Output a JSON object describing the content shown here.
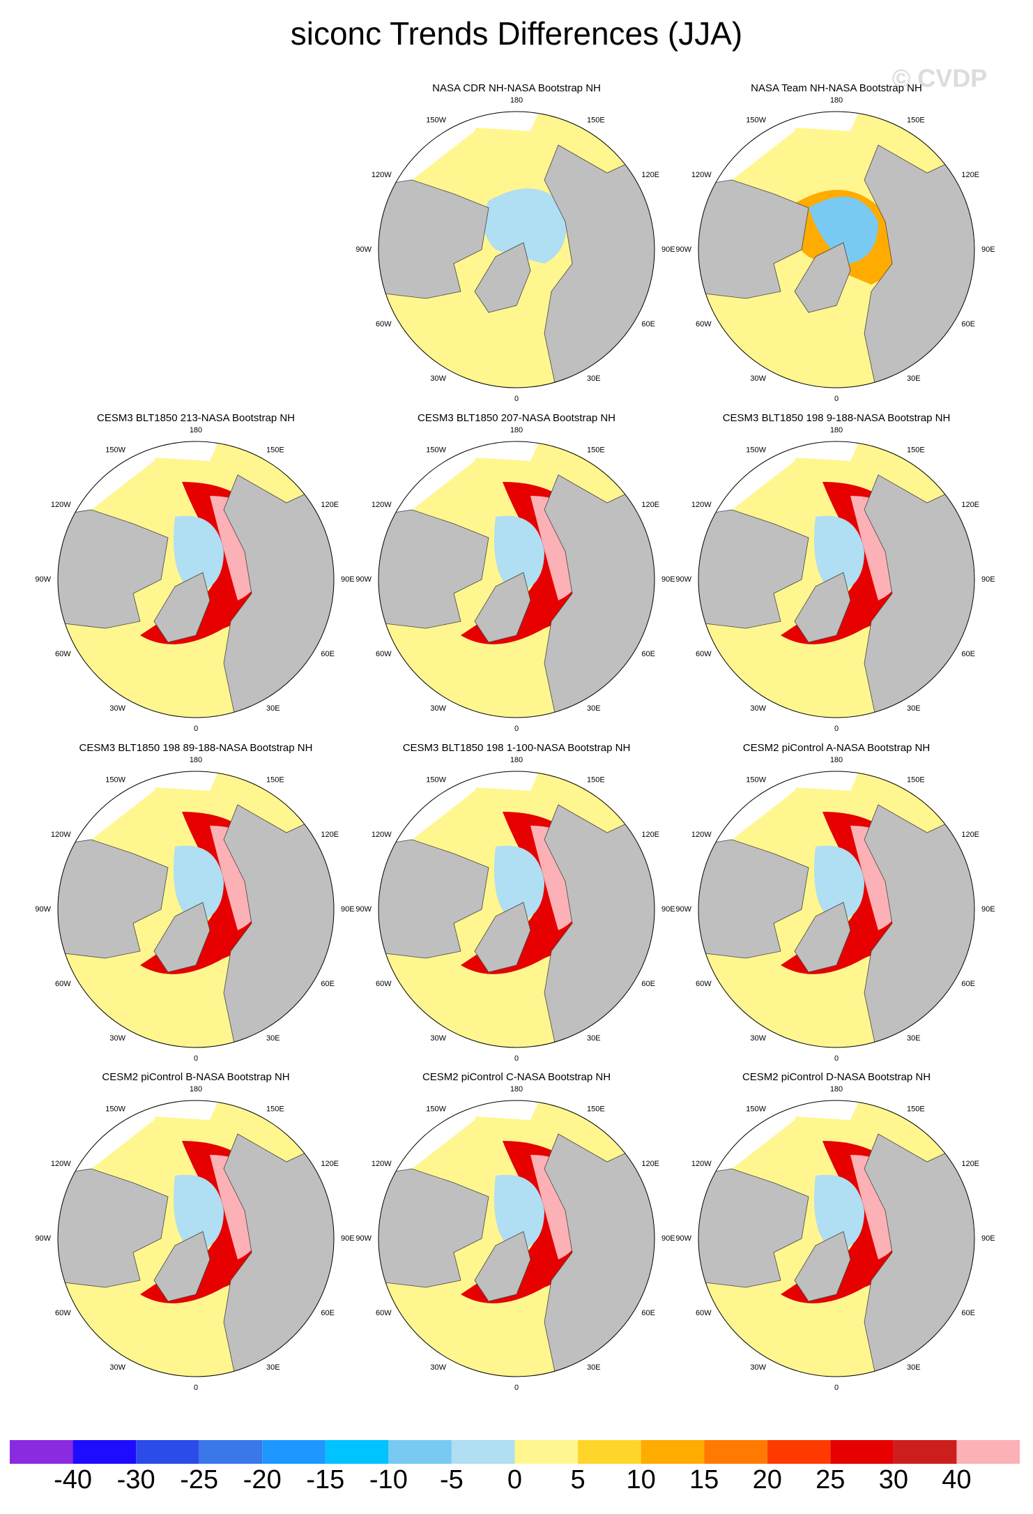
{
  "title": "siconc Trends Differences (JJA)",
  "watermark": "© CVDP",
  "panels": [
    {
      "title": "NASA CDR NH-NASA Bootstrap NH"
    },
    {
      "title": "NASA Team NH-NASA Bootstrap NH"
    },
    {
      "title": "CESM3 BLT1850 213-NASA Bootstrap NH"
    },
    {
      "title": "CESM3 BLT1850 207-NASA Bootstrap NH"
    },
    {
      "title": "CESM3 BLT1850 198 9-188-NASA Bootstrap NH"
    },
    {
      "title": "CESM3 BLT1850 198 89-188-NASA Bootstrap NH"
    },
    {
      "title": "CESM3 BLT1850 198 1-100-NASA Bootstrap NH"
    },
    {
      "title": "CESM2 piControl A-NASA Bootstrap NH"
    },
    {
      "title": "CESM2 piControl B-NASA Bootstrap NH"
    },
    {
      "title": "CESM2 piControl C-NASA Bootstrap NH"
    },
    {
      "title": "CESM2 piControl D-NASA Bootstrap NH"
    }
  ],
  "lon_labels": [
    "180",
    "150E",
    "120E",
    "90E",
    "60E",
    "30E",
    "0",
    "30W",
    "60W",
    "90W",
    "120W",
    "150W"
  ],
  "colorbar": {
    "colors": [
      "#8a2be2",
      "#1e0cff",
      "#2b4ce8",
      "#3a78ea",
      "#1e98ff",
      "#00c3ff",
      "#78caf2",
      "#b0def2",
      "#fff68f",
      "#ffd52a",
      "#ffab00",
      "#ff7a00",
      "#ff3a00",
      "#e60000",
      "#cd1e1e",
      "#fbb1b5"
    ],
    "levels": [
      -40,
      -30,
      -25,
      -20,
      -15,
      -10,
      -5,
      0,
      5,
      10,
      15,
      20,
      25,
      30,
      40
    ]
  }
}
